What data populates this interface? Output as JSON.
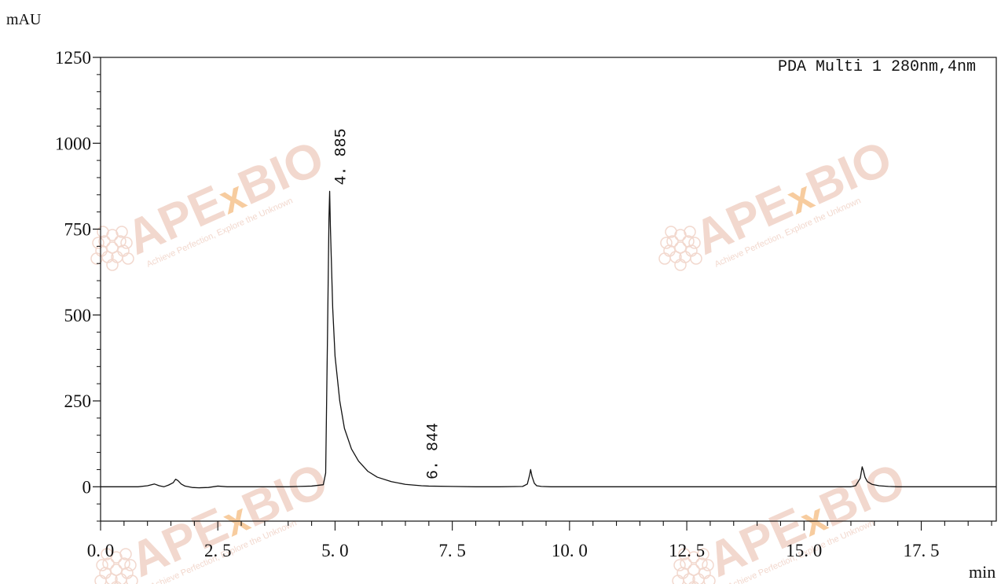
{
  "chart_data": {
    "type": "line",
    "y_unit_label": "mAU",
    "x_unit_label": "min",
    "legend": "PDA Multi 1 280nm,4nm",
    "xlim": [
      0.0,
      19.1
    ],
    "ylim": [
      -100,
      1250
    ],
    "x_ticks": [
      0.0,
      2.5,
      5.0,
      7.5,
      10.0,
      12.5,
      15.0,
      17.5
    ],
    "x_tick_labels": [
      "0. 0",
      "2. 5",
      "5. 0",
      "7. 5",
      "10. 0",
      "12. 5",
      "15. 0",
      "17. 5"
    ],
    "y_ticks": [
      0,
      250,
      500,
      750,
      1000,
      1250
    ],
    "y_tick_labels": [
      "0",
      "250",
      "500",
      "750",
      "1000",
      "1250"
    ],
    "series": [
      {
        "x": [
          0.0,
          0.8,
          1.0,
          1.15,
          1.25,
          1.35,
          1.45,
          1.55,
          1.6,
          1.65,
          1.72,
          1.8,
          1.95,
          2.1,
          2.3,
          2.5,
          2.7,
          3.0,
          3.5,
          4.0,
          4.5,
          4.75,
          4.8,
          4.84,
          4.87,
          4.885,
          4.9,
          4.95,
          5.0,
          5.1,
          5.2,
          5.35,
          5.5,
          5.7,
          5.9,
          6.2,
          6.5,
          6.844,
          7.0,
          7.5,
          8.0,
          8.5,
          9.0,
          9.1,
          9.15,
          9.17,
          9.2,
          9.25,
          9.3,
          9.4,
          9.6,
          10.0,
          12.0,
          14.0,
          16.0,
          16.1,
          16.2,
          16.24,
          16.27,
          16.3,
          16.35,
          16.45,
          16.6,
          16.8,
          17.0,
          18.0,
          19.1
        ],
        "y": [
          0,
          0,
          3,
          8,
          3,
          0,
          5,
          12,
          22,
          18,
          8,
          2,
          -2,
          -3,
          -2,
          2,
          0,
          0,
          0,
          0,
          2,
          6,
          40,
          450,
          780,
          860,
          760,
          520,
          380,
          250,
          170,
          110,
          75,
          45,
          28,
          15,
          7,
          3,
          2,
          1,
          0,
          0,
          1,
          8,
          35,
          50,
          30,
          10,
          3,
          1,
          0,
          0,
          0,
          0,
          0,
          3,
          25,
          58,
          45,
          28,
          15,
          7,
          3,
          1,
          0,
          0,
          0
        ]
      }
    ],
    "peak_labels": [
      {
        "x": 4.885,
        "y": 860,
        "label": "4. 885"
      },
      {
        "x": 6.844,
        "y": 3,
        "label": "6. 844"
      }
    ],
    "grid": false
  },
  "watermark": {
    "brand": "APExBIO",
    "tagline": "Achieve Perfection, Explore the Unknown"
  },
  "colors": {
    "line": "#111111",
    "axis": "#111111",
    "watermark_text": "#f0d2c6",
    "watermark_x": "#f6c48f"
  }
}
